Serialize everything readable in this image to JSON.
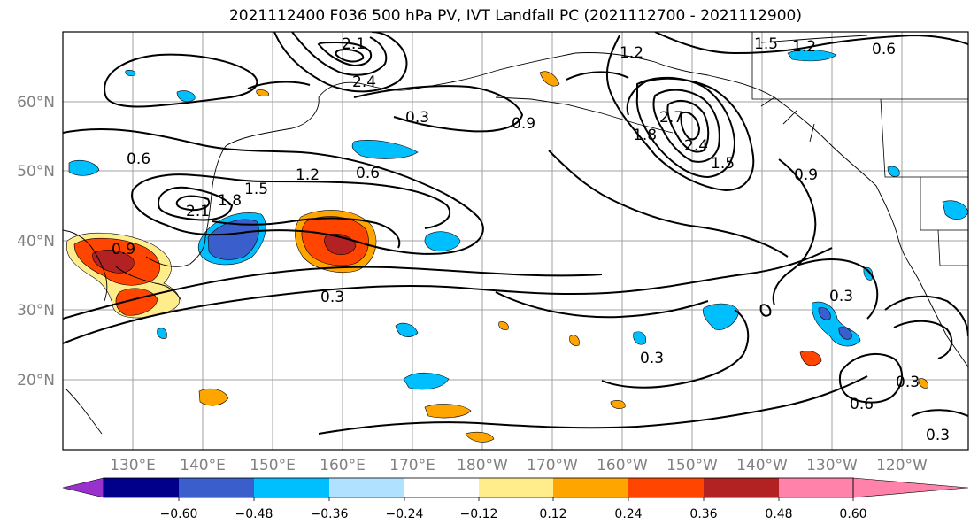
{
  "title": "2021112400 F036 500 hPa PV, IVT Landfall PC (2021112700 - 2021112900)",
  "lat_labels": [
    "60°N",
    "50°N",
    "40°N",
    "30°N",
    "20°N"
  ],
  "lon_labels": [
    "130°E",
    "140°E",
    "150°E",
    "160°E",
    "170°E",
    "180°W",
    "170°W",
    "160°W",
    "150°W",
    "140°W",
    "130°W",
    "120°W"
  ],
  "contour_labels": [
    "0.3",
    "0.6",
    "0.9",
    "1.2",
    "1.5",
    "1.8",
    "2.1",
    "2.4",
    "2.7"
  ],
  "colorbar": {
    "tick_labels": [
      "−0.60",
      "−0.48",
      "−0.36",
      "−0.24",
      "−0.12",
      "0.12",
      "0.24",
      "0.36",
      "0.48",
      "0.60"
    ],
    "colors": [
      "#9932cc",
      "#00008b",
      "#3a5fcd",
      "#00bfff",
      "#b0e2ff",
      "#ffffff",
      "#ffec8b",
      "#ffa500",
      "#ff4500",
      "#b22222",
      "#ff82ab"
    ]
  },
  "fill_colors": {
    "neg1": "#b0e2ff",
    "neg2": "#00bfff",
    "neg3": "#3a5fcd",
    "neg4": "#00008b",
    "pos1": "#ffec8b",
    "pos2": "#ffa500",
    "pos3": "#ff4500",
    "pos4": "#b22222"
  }
}
